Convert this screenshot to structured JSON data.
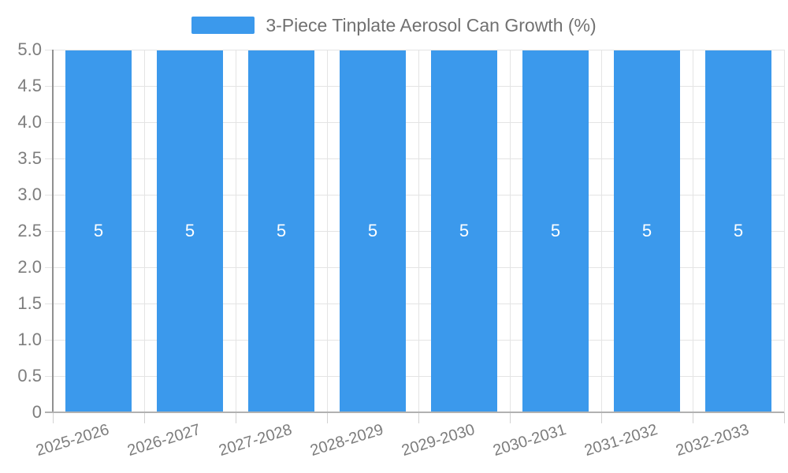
{
  "legend": {
    "label": "3-Piece Tinplate Aerosol Can Growth (%)",
    "swatch_color": "#3b99ec"
  },
  "chart_data": {
    "type": "bar",
    "title": "3-Piece Tinplate Aerosol Can Growth (%)",
    "categories": [
      "2025-2026",
      "2026-2027",
      "2027-2028",
      "2028-2029",
      "2029-2030",
      "2030-2031",
      "2031-2032",
      "2032-2033"
    ],
    "values": [
      5,
      5,
      5,
      5,
      5,
      5,
      5,
      5
    ],
    "bar_labels": [
      "5",
      "5",
      "5",
      "5",
      "5",
      "5",
      "5",
      "5"
    ],
    "series": [
      {
        "name": "3-Piece Tinplate Aerosol Can Growth (%)",
        "values": [
          5,
          5,
          5,
          5,
          5,
          5,
          5,
          5
        ]
      }
    ],
    "xlabel": "",
    "ylabel": "",
    "ylim": [
      0,
      5
    ],
    "ytick_step": 0.5,
    "ytick_labels": [
      "0",
      "0.5",
      "1.0",
      "1.5",
      "2.0",
      "2.5",
      "3.0",
      "3.5",
      "4.0",
      "4.5",
      "5.0"
    ],
    "grid": true,
    "legend_position": "top",
    "bar_color": "#3b99ec",
    "bar_label_color": "#ffffff"
  },
  "colors": {
    "background": "#ffffff",
    "grid_line": "#e4e4e4",
    "axis_line_y": "#909090",
    "axis_line_x": "#b1b1b1",
    "tick": "#d2d2d2",
    "axis_text": "#7d7d7d",
    "legend_text": "#717171"
  }
}
